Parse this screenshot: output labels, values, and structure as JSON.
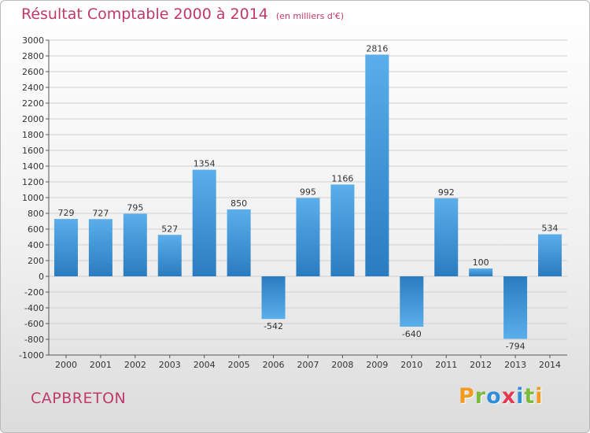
{
  "header": {
    "title": "Résultat Comptable 2000 à 2014",
    "unit": "(en milliers d'€)"
  },
  "footer": {
    "commune": "CAPBRETON",
    "logo_text": "Proxiti"
  },
  "colors": {
    "title": "#c0396b",
    "bar_light": "#5aaeea",
    "bar_dark": "#2a7cc0",
    "grid": "#d0d0d0",
    "logo_letters": [
      "#f29a1f",
      "#7dbb3c",
      "#2f8ed8",
      "#e23a4f",
      "#2f8ed8",
      "#7dbb3c",
      "#f29a1f"
    ]
  },
  "chart_data": {
    "type": "bar",
    "title": "Résultat Comptable 2000 à 2014",
    "subtitle": "(en milliers d'€)",
    "xlabel": "",
    "ylabel": "",
    "categories": [
      "2000",
      "2001",
      "2002",
      "2003",
      "2004",
      "2005",
      "2006",
      "2007",
      "2008",
      "2009",
      "2010",
      "2011",
      "2012",
      "2013",
      "2014"
    ],
    "values": [
      729,
      727,
      795,
      527,
      1354,
      850,
      -542,
      995,
      1166,
      2816,
      -640,
      992,
      100,
      -794,
      534
    ],
    "ylim": [
      -1000,
      3000
    ],
    "ytick_step": 200,
    "grid": true,
    "legend": "none"
  }
}
